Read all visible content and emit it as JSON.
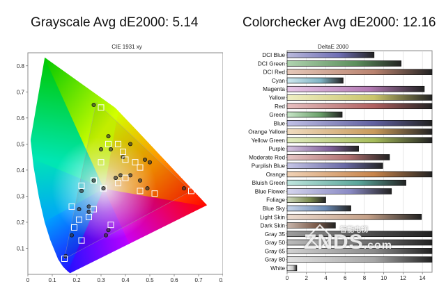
{
  "headline_left": "Grayscale Avg dE2000: 5.14",
  "headline_right": "Colorchecker Avg dE2000: 12.16",
  "chart_data": [
    {
      "type": "scatter",
      "title": "CIE 1931 xy",
      "xlim": [
        0,
        0.8
      ],
      "ylim": [
        0,
        0.85
      ],
      "xticks": [
        0,
        0.1,
        0.2,
        0.3,
        0.4,
        0.5,
        0.6,
        0.7,
        0.8
      ],
      "yticks": [
        0.1,
        0.2,
        0.3,
        0.4,
        0.5,
        0.6,
        0.7,
        0.8
      ],
      "tick_labels_x": [
        "0",
        "0.1",
        "0.2",
        "0.3",
        "0.4",
        "0.5",
        "0.6",
        "0.7",
        "0.8"
      ],
      "tick_labels_y": [
        "0.1",
        "0.2",
        "0.3",
        "0.4",
        "0.5",
        "0.6",
        "0.7",
        "0.8"
      ],
      "gamut_triangle": [
        [
          0.67,
          0.32
        ],
        [
          0.28,
          0.66
        ],
        [
          0.15,
          0.06
        ]
      ],
      "series": [
        {
          "marker": "circle",
          "points": [
            [
              0.64,
              0.33
            ],
            [
              0.27,
              0.65
            ],
            [
              0.155,
              0.07
            ],
            [
              0.22,
              0.32
            ],
            [
              0.32,
              0.15
            ],
            [
              0.42,
              0.5
            ],
            [
              0.31,
              0.33
            ],
            [
              0.42,
              0.38
            ],
            [
              0.3,
              0.48
            ],
            [
              0.34,
              0.48
            ],
            [
              0.39,
              0.45
            ],
            [
              0.33,
              0.53
            ],
            [
              0.48,
              0.44
            ],
            [
              0.5,
              0.43
            ],
            [
              0.46,
              0.36
            ],
            [
              0.49,
              0.33
            ],
            [
              0.25,
              0.24
            ],
            [
              0.18,
              0.15
            ],
            [
              0.27,
              0.36
            ],
            [
              0.36,
              0.37
            ],
            [
              0.38,
              0.38
            ],
            [
              0.21,
              0.25
            ],
            [
              0.33,
              0.17
            ],
            [
              0.25,
              0.26
            ]
          ]
        },
        {
          "marker": "square",
          "points": [
            [
              0.67,
              0.32
            ],
            [
              0.3,
              0.64
            ],
            [
              0.15,
              0.06
            ],
            [
              0.21,
              0.21
            ],
            [
              0.22,
              0.34
            ],
            [
              0.27,
              0.25
            ],
            [
              0.3,
              0.43
            ],
            [
              0.37,
              0.35
            ],
            [
              0.33,
              0.5
            ],
            [
              0.4,
              0.44
            ],
            [
              0.44,
              0.43
            ],
            [
              0.37,
              0.5
            ],
            [
              0.39,
              0.47
            ],
            [
              0.46,
              0.32
            ],
            [
              0.52,
              0.31
            ],
            [
              0.34,
              0.19
            ],
            [
              0.18,
              0.26
            ],
            [
              0.27,
              0.36
            ],
            [
              0.31,
              0.33
            ],
            [
              0.4,
              0.37
            ],
            [
              0.46,
              0.41
            ],
            [
              0.19,
              0.18
            ],
            [
              0.22,
              0.13
            ],
            [
              0.25,
              0.22
            ]
          ]
        }
      ]
    },
    {
      "type": "bar",
      "title": "DeltaE 2000",
      "categories": [
        "DCI Blue",
        "DCI Green",
        "DCI Red",
        "Cyan",
        "Magenta",
        "Yellow",
        "Red",
        "Green",
        "Blue",
        "Orange Yellow",
        "Yellow Green",
        "Purple",
        "Moderate Red",
        "Purplish Blue",
        "Orange",
        "Bluish Green",
        "Blue Flower",
        "Foliage",
        "Blue Sky",
        "Light Skin",
        "Dark Skin",
        "Gray 35",
        "Gray 50",
        "Gray 65",
        "Gray 80",
        "White"
      ],
      "values": [
        9,
        11.8,
        15,
        5.8,
        14.2,
        15,
        15,
        5.7,
        15,
        15,
        15,
        7.4,
        10.6,
        9.9,
        15,
        12.3,
        10.8,
        4,
        6.6,
        13.9,
        5,
        15,
        15,
        15,
        15,
        1
      ],
      "bar_colors": [
        [
          "#6e6eb4",
          "#b9b9dc"
        ],
        [
          "#5c8f5c",
          "#b0d4b0"
        ],
        [
          "#b9826e",
          "#e6c8b9"
        ],
        [
          "#7fb4c4",
          "#cfe8ef"
        ],
        [
          "#b47ab4",
          "#e8c8e8"
        ],
        [
          "#c9c46a",
          "#efeec4"
        ],
        [
          "#b06060",
          "#e8c0c0"
        ],
        [
          "#6aa06a",
          "#c8e6c8"
        ],
        [
          "#6060a0",
          "#c0c0e6"
        ],
        [
          "#c99a5a",
          "#f0dcc0"
        ],
        [
          "#a6bc5a",
          "#e2ecc0"
        ],
        [
          "#80609a",
          "#d6c4e0"
        ],
        [
          "#b07070",
          "#e6c6c6"
        ],
        [
          "#6a6aa6",
          "#c6c6e6"
        ],
        [
          "#c8844a",
          "#f0d2b6"
        ],
        [
          "#5aa69a",
          "#c0e6df"
        ],
        [
          "#8a8ac4",
          "#d6d6ee"
        ],
        [
          "#7a8a4e",
          "#cfd8bc"
        ],
        [
          "#6a8ab4",
          "#c8d6ea"
        ],
        [
          "#c4a088",
          "#ecdcd0"
        ],
        [
          "#7a5a4a",
          "#c8b6ac"
        ],
        [
          "#4a4a4a",
          "#9e9e9e"
        ],
        [
          "#6a6a6a",
          "#bcbcbc"
        ],
        [
          "#8a8a8a",
          "#d2d2d2"
        ],
        [
          "#a6a6a6",
          "#e2e2e2"
        ],
        [
          "#c8c8c8",
          "#f6f6f6"
        ]
      ],
      "xlim": [
        0,
        15
      ],
      "xticks": [
        0,
        2,
        4,
        6,
        8,
        10,
        12,
        14
      ],
      "tick_labels_x": [
        "0",
        "2",
        "4",
        "6",
        "8",
        "10",
        "12",
        "14"
      ]
    }
  ],
  "watermark": {
    "text": "ZNDS",
    "suffix": ".com",
    "sub": "智能电视"
  }
}
